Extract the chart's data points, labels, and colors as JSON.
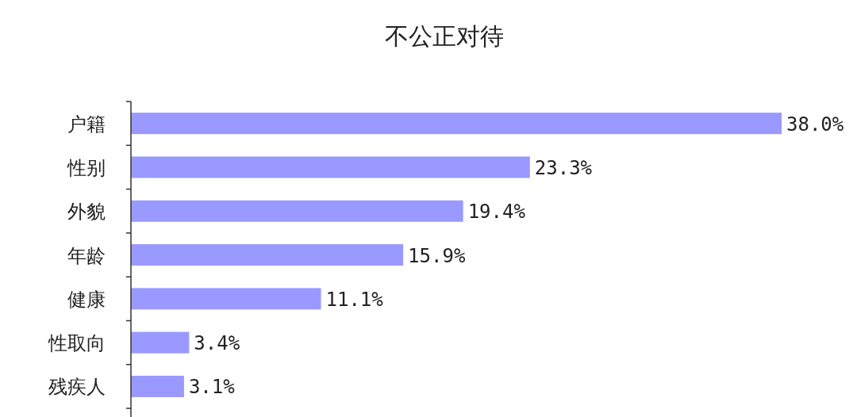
{
  "chart_data": {
    "type": "bar",
    "orientation": "horizontal",
    "title": "不公正对待",
    "categories": [
      "户籍",
      "性别",
      "外貌",
      "年龄",
      "健康",
      "性取向",
      "残疾人"
    ],
    "values": [
      38.0,
      23.3,
      19.4,
      15.9,
      11.1,
      3.4,
      3.1
    ],
    "value_labels": [
      "38.0%",
      "23.3%",
      "19.4%",
      "15.9%",
      "11.1%",
      "3.4%",
      "3.1%"
    ],
    "color": "#9999ff"
  }
}
